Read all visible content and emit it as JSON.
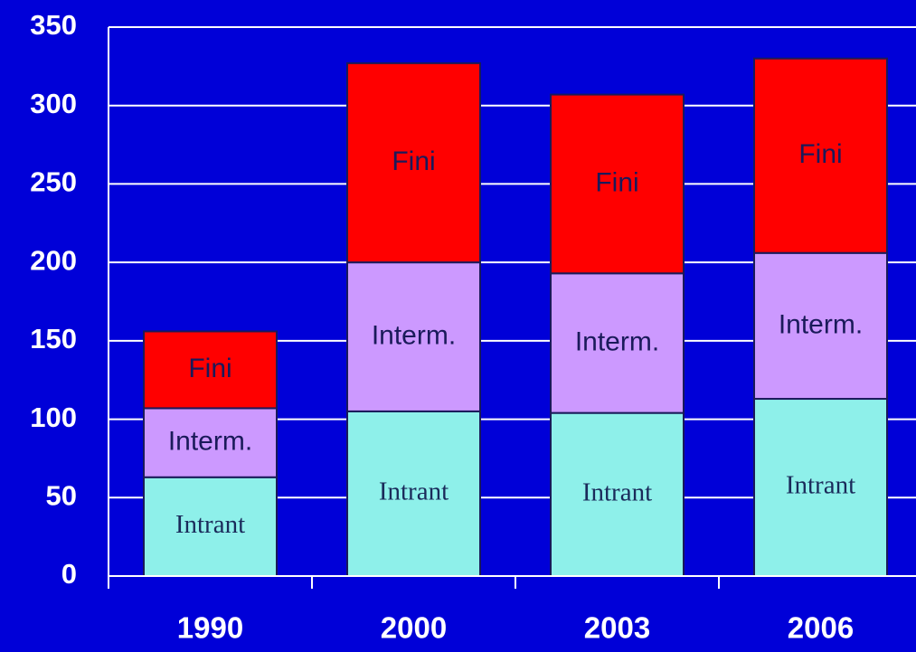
{
  "chart_data": {
    "type": "stacked_bar",
    "categories": [
      "1990",
      "2000",
      "2003",
      "2006"
    ],
    "series": [
      {
        "name": "Intrant",
        "color": "#8ef0ea",
        "values": [
          63,
          105,
          104,
          113
        ]
      },
      {
        "name": "Interm.",
        "color": "#cc99ff",
        "values": [
          44,
          95,
          89,
          93
        ]
      },
      {
        "name": "Fini",
        "color": "#ff0000",
        "values": [
          49,
          127,
          114,
          124
        ]
      }
    ],
    "ylim": [
      0,
      350
    ],
    "yticks": [
      0,
      50,
      100,
      150,
      200,
      250,
      300,
      350
    ],
    "grid": true
  }
}
